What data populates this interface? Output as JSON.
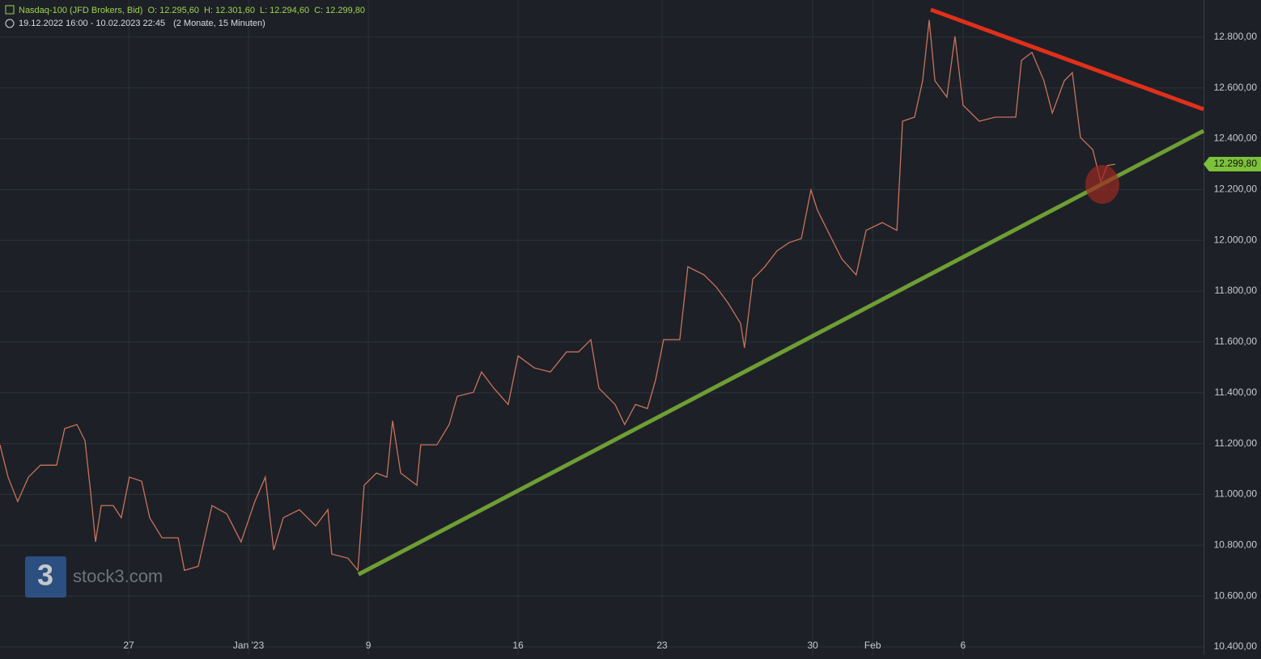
{
  "chart_data": {
    "type": "line",
    "title": "Nasdaq-100 (JFD Brokers, Bid)",
    "ohlc": [
      {
        "label": "O:",
        "value": "12.295,60"
      },
      {
        "label": "H:",
        "value": "12.301,60"
      },
      {
        "label": "L:",
        "value": "12.294,60"
      },
      {
        "label": "C:",
        "value": "12.299,80"
      }
    ],
    "range": "19.12.2022 16:00 - 10.02.2023 22:45",
    "range_note": "(2 Monate, 15 Minuten)",
    "watermark": "stock3.com",
    "x": [
      0,
      0.27,
      0.59,
      0.95,
      1.35,
      1.89,
      2.16,
      2.57,
      2.84,
      3.03,
      3.19,
      3.38,
      3.78,
      4.05,
      4.32,
      4.73,
      5,
      5.41,
      5.95,
      6.16,
      6.62,
      7.08,
      7.57,
      8.05,
      8.51,
      8.86,
      9.14,
      9.46,
      10,
      10.54,
      10.95,
      11.08,
      11.62,
      11.95,
      12.16,
      12.57,
      12.92,
      13.11,
      13.38,
      13.92,
      14.05,
      14.59,
      15,
      15.27,
      15.81,
      16.08,
      16.49,
      16.97,
      17.3,
      17.84,
      18.38,
      18.92,
      19.32,
      19.73,
      20,
      20.54,
      20.86,
      21.22,
      21.62,
      21.89,
      22.16,
      22.7,
      22.97,
      23.51,
      23.92,
      24.32,
      24.73,
      24.86,
      25.14,
      25.54,
      25.95,
      26.35,
      26.76,
      27.08,
      27.3,
      27.7,
      28.11,
      28.59,
      28.92,
      29.46,
      29.95,
      30.14,
      30.54,
      30.81,
      31.03,
      31.22,
      31.62,
      31.89,
      32.16,
      32.7,
      33.24,
      33.92,
      34.11,
      34.46,
      34.86,
      35.14,
      35.54,
      35.81,
      36.08,
      36.49,
      36.76,
      36.97,
      37.24
    ],
    "series": [
      {
        "color": "#c9735a",
        "values": [
          11195,
          11068,
          10972,
          11068,
          11115,
          11115,
          11259,
          11275,
          11211,
          11004,
          10813,
          10956,
          10956,
          10908,
          11068,
          11052,
          10908,
          10829,
          10829,
          10701,
          10717,
          10956,
          10924,
          10813,
          10972,
          11068,
          10781,
          10908,
          10940,
          10876,
          10940,
          10765,
          10749,
          10701,
          11036,
          11084,
          11068,
          11290,
          11084,
          11036,
          11195,
          11195,
          11275,
          11386,
          11402,
          11482,
          11418,
          11354,
          11545,
          11498,
          11482,
          11561,
          11561,
          11609,
          11418,
          11354,
          11275,
          11354,
          11338,
          11450,
          11609,
          11609,
          11896,
          11864,
          11816,
          11752,
          11673,
          11577,
          11848,
          11896,
          11959,
          11991,
          12007,
          12198,
          12118,
          12023,
          11927,
          11864,
          12039,
          12070,
          12039,
          12469,
          12485,
          12628,
          12867,
          12628,
          12564,
          12803,
          12532,
          12469,
          12485,
          12485,
          12708,
          12740,
          12628,
          12501,
          12628,
          12660,
          12405,
          12357,
          12230,
          12294,
          12299.8
        ],
        "value_labels": [
          null,
          null,
          null,
          null,
          null,
          null,
          null,
          null,
          null,
          null,
          null,
          null,
          null,
          null,
          null,
          null,
          null,
          null,
          null,
          null,
          null,
          null,
          null,
          null,
          null,
          null,
          null,
          null,
          null,
          null,
          null,
          null,
          null,
          null,
          null,
          null,
          null,
          null,
          null,
          null,
          null,
          null,
          null,
          null,
          null,
          null,
          null,
          null,
          null,
          null,
          null,
          null,
          null,
          null,
          null,
          null,
          null,
          null,
          null,
          null,
          null,
          null,
          null,
          null,
          null,
          null,
          null,
          null,
          null,
          null,
          null,
          null,
          null,
          null,
          null,
          null,
          null,
          null,
          null,
          null,
          null,
          null,
          null,
          null,
          null,
          null,
          null,
          null,
          null,
          null,
          null,
          null,
          null,
          null,
          null,
          null,
          null,
          null,
          null,
          null,
          null,
          null,
          "12.299,80"
        ]
      }
    ],
    "trendlines": [
      {
        "color": "#e0301a",
        "x": [
          31.08,
          40.19
        ],
        "values": [
          12908,
          12516
        ]
      },
      {
        "color": "#6e9e34",
        "x": [
          11.97,
          40.19
        ],
        "values": [
          10685,
          12431
        ]
      }
    ],
    "highlight": {
      "color": "#9b2a22",
      "x": 36.81,
      "value": 12220
    },
    "xlim": [
      0,
      40.19
    ],
    "xticks": [
      {
        "value": 4.3,
        "label": "27"
      },
      {
        "value": 8.3,
        "label": "Jan '23"
      },
      {
        "value": 12.3,
        "label": "9"
      },
      {
        "value": 17.3,
        "label": "16"
      },
      {
        "value": 22.11,
        "label": "23"
      },
      {
        "value": 27.14,
        "label": "30"
      },
      {
        "value": 29.14,
        "label": "Feb"
      },
      {
        "value": 32.16,
        "label": "6"
      }
    ],
    "ylim": [
      10368,
      12946
    ],
    "yticks": [
      {
        "value": 10400,
        "label": "10.400,00"
      },
      {
        "value": 10600,
        "label": "10.600,00"
      },
      {
        "value": 10800,
        "label": "10.800,00"
      },
      {
        "value": 11000,
        "label": "11.000,00"
      },
      {
        "value": 11200,
        "label": "11.200,00"
      },
      {
        "value": 11400,
        "label": "11.400,00"
      },
      {
        "value": 11600,
        "label": "11.600,00"
      },
      {
        "value": 11800,
        "label": "11.800,00"
      },
      {
        "value": 12000,
        "label": "12.000,00"
      },
      {
        "value": 12200,
        "label": "12.200,00"
      },
      {
        "value": 12400,
        "label": "12.400,00"
      },
      {
        "value": 12600,
        "label": "12.600,00"
      },
      {
        "value": 12800,
        "label": "12.800,00"
      }
    ],
    "grid": true
  }
}
